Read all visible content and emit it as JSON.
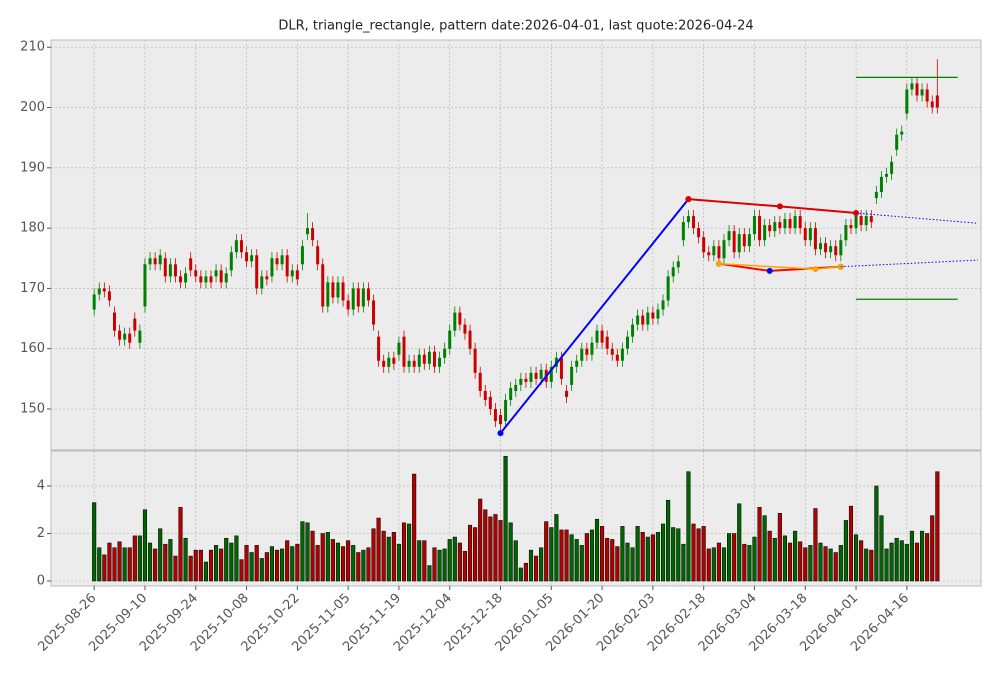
{
  "chart_data": {
    "type": "candlestick",
    "title": "DLR, triangle_rectangle, pattern date:2026-04-01, last quote:2026-04-24",
    "categories": [
      "2025-08-26",
      "2025-08-27",
      "2025-08-28",
      "2025-08-29",
      "2025-09-02",
      "2025-09-03",
      "2025-09-04",
      "2025-09-05",
      "2025-09-08",
      "2025-09-09",
      "2025-09-10",
      "2025-09-11",
      "2025-09-12",
      "2025-09-15",
      "2025-09-16",
      "2025-09-17",
      "2025-09-18",
      "2025-09-19",
      "2025-09-22",
      "2025-09-23",
      "2025-09-24",
      "2025-09-25",
      "2025-09-26",
      "2025-09-29",
      "2025-09-30",
      "2025-10-01",
      "2025-10-02",
      "2025-10-03",
      "2025-10-06",
      "2025-10-07",
      "2025-10-08",
      "2025-10-09",
      "2025-10-10",
      "2025-10-13",
      "2025-10-14",
      "2025-10-15",
      "2025-10-16",
      "2025-10-17",
      "2025-10-20",
      "2025-10-21",
      "2025-10-22",
      "2025-10-23",
      "2025-10-24",
      "2025-10-27",
      "2025-10-28",
      "2025-10-29",
      "2025-10-30",
      "2025-10-31",
      "2025-11-03",
      "2025-11-04",
      "2025-11-05",
      "2025-11-06",
      "2025-11-07",
      "2025-11-10",
      "2025-11-11",
      "2025-11-12",
      "2025-11-13",
      "2025-11-14",
      "2025-11-17",
      "2025-11-18",
      "2025-11-19",
      "2025-11-20",
      "2025-11-21",
      "2025-11-24",
      "2025-11-25",
      "2025-11-26",
      "2025-11-28",
      "2025-12-01",
      "2025-12-02",
      "2025-12-03",
      "2025-12-04",
      "2025-12-05",
      "2025-12-08",
      "2025-12-09",
      "2025-12-10",
      "2025-12-11",
      "2025-12-12",
      "2025-12-15",
      "2025-12-16",
      "2025-12-17",
      "2025-12-18",
      "2025-12-19",
      "2025-12-22",
      "2025-12-23",
      "2025-12-24",
      "2025-12-26",
      "2025-12-29",
      "2025-12-30",
      "2025-12-31",
      "2026-01-02",
      "2026-01-05",
      "2026-01-06",
      "2026-01-07",
      "2026-01-08",
      "2026-01-09",
      "2026-01-12",
      "2026-01-13",
      "2026-01-14",
      "2026-01-15",
      "2026-01-16",
      "2026-01-20",
      "2026-01-21",
      "2026-01-22",
      "2026-01-23",
      "2026-01-26",
      "2026-01-27",
      "2026-01-28",
      "2026-01-29",
      "2026-01-30",
      "2026-02-02",
      "2026-02-03",
      "2026-02-04",
      "2026-02-05",
      "2026-02-06",
      "2026-02-09",
      "2026-02-10",
      "2026-02-11",
      "2026-02-12",
      "2026-02-13",
      "2026-02-17",
      "2026-02-18",
      "2026-02-19",
      "2026-02-20",
      "2026-02-23",
      "2026-02-24",
      "2026-02-25",
      "2026-02-26",
      "2026-02-27",
      "2026-03-02",
      "2026-03-03",
      "2026-03-04",
      "2026-03-05",
      "2026-03-06",
      "2026-03-09",
      "2026-03-10",
      "2026-03-11",
      "2026-03-12",
      "2026-03-13",
      "2026-03-16",
      "2026-03-17",
      "2026-03-18",
      "2026-03-19",
      "2026-03-20",
      "2026-03-23",
      "2026-03-24",
      "2026-03-25",
      "2026-03-26",
      "2026-03-27",
      "2026-03-30",
      "2026-03-31",
      "2026-04-01",
      "2026-04-02",
      "2026-04-06",
      "2026-04-07",
      "2026-04-08",
      "2026-04-09",
      "2026-04-10",
      "2026-04-13",
      "2026-04-14",
      "2026-04-15",
      "2026-04-16",
      "2026-04-17",
      "2026-04-20",
      "2026-04-21",
      "2026-04-22",
      "2026-04-23",
      "2026-04-24"
    ],
    "open": [
      166.5,
      169,
      170,
      169.5,
      166,
      163,
      161.5,
      162.5,
      165,
      161,
      167,
      174,
      175,
      174,
      175,
      172,
      174,
      172,
      171,
      175,
      173,
      172,
      171,
      172,
      172,
      173,
      171,
      173,
      176,
      178,
      176,
      174.5,
      175.5,
      170,
      172,
      172,
      175,
      174,
      175.5,
      172,
      173,
      174,
      179,
      180,
      177,
      174,
      167,
      171,
      168.5,
      171,
      168,
      166.5,
      170,
      167,
      170,
      168,
      162,
      158,
      157,
      158.5,
      159,
      162,
      157,
      158,
      157,
      159,
      157.5,
      159.5,
      157,
      158.5,
      160,
      163,
      166,
      164,
      163,
      160,
      156,
      153,
      152,
      150,
      149,
      148,
      151.5,
      153,
      154,
      155,
      154.5,
      156,
      155,
      156.5,
      154.5,
      157,
      158.5,
      153,
      154,
      157,
      158,
      160,
      159,
      161,
      163,
      162,
      160,
      159,
      158,
      160,
      162,
      164,
      165.5,
      164,
      166,
      165,
      166.5,
      168,
      172,
      173.5,
      178,
      181,
      182,
      180,
      178.5,
      176,
      175.5,
      177,
      175,
      178,
      179.5,
      176,
      179,
      177,
      179,
      182,
      178,
      180.5,
      179.5,
      181,
      180,
      181.5,
      180,
      182,
      180,
      178,
      180,
      176.5,
      177.5,
      176,
      177,
      175.5,
      178,
      180.5,
      180,
      182,
      180.5,
      182,
      185,
      186,
      188.5,
      189,
      193,
      195.5,
      199,
      203,
      204,
      202,
      203,
      201,
      202
    ],
    "high": [
      170,
      171,
      171,
      170.5,
      167,
      164,
      163.5,
      163.5,
      166,
      164,
      175,
      176,
      176,
      176.5,
      176,
      175,
      175,
      173,
      173.5,
      176,
      174,
      173,
      173,
      173,
      174,
      174,
      173.5,
      177,
      179,
      179,
      177,
      176.5,
      176.5,
      173,
      173,
      176,
      176,
      176.5,
      176.5,
      174,
      174,
      178,
      182.5,
      181,
      178,
      175,
      172,
      172,
      172,
      172,
      169,
      171,
      171,
      171,
      171,
      169,
      163,
      159,
      159.5,
      159.5,
      162,
      163,
      159,
      159,
      160,
      160,
      160.5,
      160.5,
      159.5,
      161,
      164,
      167,
      167,
      165,
      164,
      161,
      157,
      154,
      153,
      151,
      150,
      152.5,
      154.5,
      155,
      156,
      156,
      157,
      157,
      157.5,
      157.5,
      158,
      159.5,
      159.5,
      154,
      158,
      159,
      161,
      161,
      162,
      164,
      164,
      163,
      161,
      160,
      161,
      163,
      165,
      166.5,
      166.5,
      167,
      167,
      167.5,
      169,
      173,
      174.5,
      175.5,
      182,
      183,
      183,
      181,
      179.5,
      177,
      178,
      178,
      179,
      180.5,
      180.5,
      180,
      180,
      180,
      183,
      183,
      181.5,
      181.5,
      182,
      182,
      182.5,
      182.5,
      183,
      183,
      181,
      181,
      181,
      178.5,
      178.5,
      178,
      178,
      179,
      181.5,
      181.5,
      183,
      183,
      183,
      183,
      187,
      189.5,
      190,
      192,
      196.5,
      197,
      204,
      205,
      205,
      204,
      204,
      202,
      208
    ],
    "low": [
      165.5,
      168,
      168.5,
      167,
      162,
      160.5,
      160.5,
      160,
      162,
      160,
      166,
      173,
      173,
      173,
      171,
      171,
      171,
      170,
      170,
      172,
      171,
      170,
      170,
      170,
      171,
      170,
      170,
      172,
      175,
      175,
      173.5,
      173.5,
      169,
      169,
      170.5,
      171,
      173,
      173,
      171,
      171,
      170.5,
      173,
      178,
      177,
      173,
      166,
      166,
      167.5,
      167.5,
      167,
      165.5,
      165.5,
      166,
      166,
      167,
      163,
      157,
      156,
      156,
      156.5,
      158,
      156,
      156,
      156,
      156,
      156.5,
      156.5,
      156,
      156,
      157.5,
      159,
      162,
      163,
      161.5,
      159,
      155,
      152,
      150.5,
      149,
      147,
      146,
      147,
      150.5,
      152,
      153,
      153.5,
      153.5,
      154,
      154,
      153.5,
      153.5,
      156,
      154,
      151,
      153,
      156,
      157,
      158,
      158,
      160,
      160,
      159,
      158,
      157,
      157,
      159,
      161,
      163,
      163,
      163,
      164,
      164,
      165.5,
      167,
      171,
      172.5,
      177,
      180,
      179,
      177.5,
      175,
      174.5,
      174.5,
      174,
      174,
      177,
      175,
      175,
      176,
      176,
      178,
      177,
      177,
      178.5,
      178.5,
      179,
      179,
      179,
      179,
      179,
      177,
      177,
      175.5,
      175.5,
      175,
      175,
      174.5,
      174.5,
      177,
      179,
      179,
      179.5,
      179.5,
      180,
      184,
      185,
      187.5,
      188,
      192,
      194.5,
      198,
      202,
      201,
      201,
      200,
      199,
      199
    ],
    "close": [
      169,
      170,
      169.5,
      168,
      163,
      161.5,
      162.5,
      161,
      163,
      163,
      174,
      175,
      174,
      175.5,
      172,
      174,
      172,
      171,
      172.5,
      173,
      172,
      171,
      172,
      171,
      173,
      171,
      172.5,
      176,
      178,
      176,
      174.5,
      175.5,
      170,
      172,
      171.5,
      175,
      174,
      175.5,
      172,
      173,
      171.5,
      177,
      180,
      178,
      174,
      167,
      171,
      168.5,
      171,
      168,
      166.5,
      170,
      167,
      170,
      168,
      164,
      158,
      157,
      158.5,
      157.5,
      161,
      157,
      158,
      157,
      159,
      157.5,
      159.5,
      157,
      158.5,
      160,
      163,
      166,
      164,
      162.5,
      160,
      156,
      153,
      151.5,
      150,
      148,
      147.5,
      151.5,
      153.5,
      154,
      155,
      154.5,
      156,
      155,
      156.5,
      154.5,
      157,
      158.5,
      155,
      152,
      157,
      158,
      160,
      159,
      161,
      163,
      161,
      160,
      159,
      158,
      160,
      162,
      164,
      165.5,
      164,
      166,
      165,
      166.5,
      168,
      172,
      173.5,
      174.5,
      181,
      182,
      180,
      178.5,
      176,
      175.5,
      177,
      175,
      178,
      179.5,
      176,
      179,
      177,
      179,
      182,
      178,
      180.5,
      179.5,
      181,
      180,
      181.5,
      180,
      182,
      180,
      178,
      180,
      176.5,
      177.5,
      176,
      177,
      175.5,
      178,
      180.5,
      180,
      182,
      180.5,
      182,
      181,
      186,
      188.5,
      189,
      191,
      195.5,
      196,
      203,
      204,
      202,
      203,
      201,
      200,
      200
    ],
    "volume": [
      3.3,
      1.4,
      1.1,
      1.6,
      1.4,
      1.65,
      1.4,
      1.4,
      1.9,
      1.9,
      3.0,
      1.6,
      1.35,
      2.2,
      1.55,
      1.75,
      1.05,
      3.1,
      1.8,
      1.05,
      1.3,
      1.3,
      0.8,
      1.3,
      1.5,
      1.35,
      1.8,
      1.6,
      1.9,
      0.9,
      1.5,
      1.2,
      1.5,
      0.95,
      1.2,
      1.45,
      1.3,
      1.35,
      1.7,
      1.45,
      1.55,
      2.5,
      2.45,
      2.1,
      1.5,
      2.0,
      2.05,
      1.75,
      1.6,
      1.45,
      1.7,
      1.5,
      1.2,
      1.3,
      1.4,
      2.2,
      2.65,
      2.1,
      1.85,
      2.05,
      1.55,
      2.45,
      2.4,
      4.5,
      1.7,
      1.7,
      0.65,
      1.4,
      1.3,
      1.35,
      1.75,
      1.85,
      1.6,
      1.25,
      2.35,
      2.25,
      3.45,
      3.0,
      2.7,
      2.8,
      2.55,
      5.25,
      2.45,
      1.7,
      0.55,
      0.75,
      1.3,
      1.05,
      1.4,
      2.5,
      2.25,
      2.8,
      2.15,
      2.15,
      1.95,
      1.75,
      1.5,
      2.0,
      2.15,
      2.6,
      2.3,
      1.8,
      1.75,
      1.45,
      2.3,
      1.6,
      1.4,
      2.3,
      2.05,
      1.85,
      1.95,
      2.05,
      2.4,
      3.4,
      2.25,
      2.2,
      1.55,
      4.6,
      2.4,
      2.2,
      2.3,
      1.35,
      1.4,
      1.6,
      1.4,
      2.0,
      2.0,
      3.25,
      1.55,
      1.5,
      1.85,
      3.1,
      2.75,
      2.1,
      1.8,
      2.85,
      1.9,
      1.6,
      2.1,
      1.65,
      1.4,
      1.5,
      3.05,
      1.6,
      1.45,
      1.35,
      1.2,
      1.5,
      2.55,
      3.15,
      1.95,
      1.7,
      1.35,
      1.3,
      4.0,
      2.75,
      1.35,
      1.6,
      1.8,
      1.7,
      1.55,
      2.1,
      1.6,
      2.1,
      2.0,
      2.75,
      4.6
    ],
    "up_color": "#008000",
    "down_color": "#cc0000",
    "xticks": [
      "2025-08-26",
      "2025-09-10",
      "2025-09-24",
      "2025-10-08",
      "2025-10-22",
      "2025-11-05",
      "2025-11-19",
      "2025-12-04",
      "2025-12-18",
      "2026-01-05",
      "2026-01-20",
      "2026-02-03",
      "2026-02-18",
      "2026-03-04",
      "2026-03-18",
      "2026-04-01",
      "2026-04-16"
    ],
    "xlim": [
      -8.5,
      174.6
    ],
    "ylim": [
      143.2,
      211.2
    ],
    "yticks": [
      150,
      160,
      170,
      180,
      190,
      200,
      210
    ],
    "volume_ylim": [
      -0.21,
      5.47
    ],
    "volume_yticks": [
      0,
      2,
      4
    ],
    "grid": true,
    "lines": [
      {
        "color": "#0000ff",
        "style": "solid",
        "width": 2,
        "marker_color": "#0000ff",
        "x": [
          "2025-12-18",
          "2026-02-12"
        ],
        "y": [
          146,
          184.8
        ]
      },
      {
        "color": "#dd0000",
        "style": "solid",
        "width": 2,
        "marker_color": "#dd0000",
        "x": [
          "2026-02-12",
          "2026-03-11",
          "2026-04-01"
        ],
        "y": [
          184.8,
          183.6,
          182.5
        ]
      },
      {
        "color": "#ff0000",
        "style": "solid",
        "width": 2,
        "marker_color": "#0000ff",
        "x": [
          "2026-02-23",
          "2026-03-09",
          "2026-03-27"
        ],
        "y": [
          174.1,
          172.9,
          173.6
        ]
      },
      {
        "color": "#ffa500",
        "style": "solid",
        "width": 1.5,
        "marker_color": "#ffa500",
        "x": [
          "2026-02-23",
          "2026-03-20",
          "2026-03-27"
        ],
        "y": [
          174.1,
          173.2,
          173.6
        ]
      },
      {
        "color": "#0000ff",
        "style": "dotted",
        "width": 1,
        "x": [
          "2026-04-01",
          "2026-05-06"
        ],
        "y": [
          182.5,
          180.8
        ]
      },
      {
        "color": "#0000ff",
        "style": "dotted",
        "width": 1,
        "x": [
          "2026-03-27",
          "2026-05-06"
        ],
        "y": [
          173.6,
          174.7
        ]
      },
      {
        "color": "#008000",
        "style": "solid",
        "width": 1.2,
        "x": [
          "2026-04-01",
          "2026-04-30"
        ],
        "y": [
          205,
          205
        ]
      },
      {
        "color": "#008000",
        "style": "solid",
        "width": 1.2,
        "x": [
          "2026-04-01",
          "2026-04-30"
        ],
        "y": [
          168.2,
          168.2
        ]
      }
    ]
  }
}
